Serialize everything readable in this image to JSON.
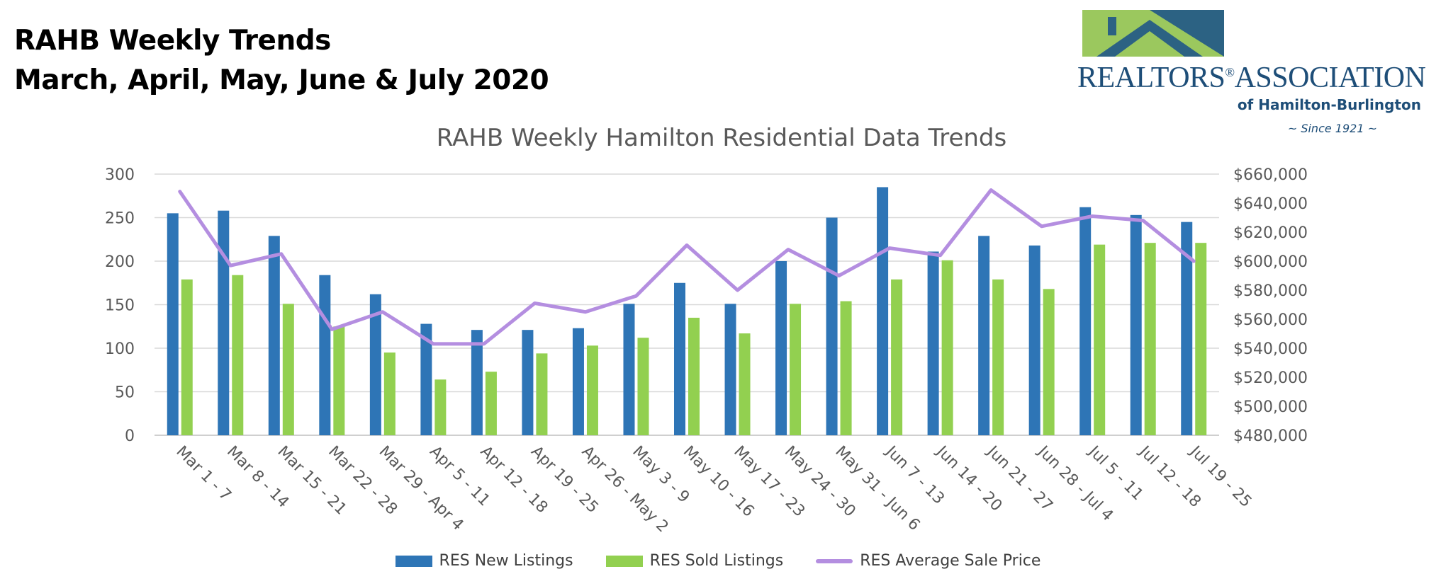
{
  "heading": {
    "line1": "RAHB Weekly Trends",
    "line2": "March, April, May, June & July 2020"
  },
  "logo": {
    "name": "REALTORS",
    "registered": "®",
    "name_tail": "ASSOCIATION",
    "subtitle": "of Hamilton-Burlington",
    "since": "~ Since 1921 ~",
    "colors": {
      "navy": "#1e4e78",
      "green": "#9bc85e",
      "teal": "#2f6e8d"
    }
  },
  "chart_data": {
    "type": "bar",
    "title": "RAHB Weekly Hamilton Residential Data Trends",
    "categories": [
      "Mar 1 - 7",
      "Mar 8 - 14",
      "Mar 15 - 21",
      "Mar 22 - 28",
      "Mar 29 - Apr 4",
      "Apr 5 - 11",
      "Apr 12 - 18",
      "Apr 19 - 25",
      "Apr 26 - May 2",
      "May 3 - 9",
      "May 10 - 16",
      "May 17 - 23",
      "May 24 - 30",
      "May 31 - Jun 6",
      "Jun 7 - 13",
      "Jun 14 - 20",
      "Jun 21 - 27",
      "Jun 28 - Jul 4",
      "Jul 5 - 11",
      "Jul 12 - 18",
      "Jul 19 - 25"
    ],
    "series": [
      {
        "name": "RES New Listings",
        "type": "bar",
        "axis": "left",
        "color": "#2e75b6",
        "values": [
          255,
          258,
          229,
          184,
          162,
          128,
          121,
          121,
          123,
          151,
          175,
          151,
          200,
          250,
          285,
          211,
          229,
          218,
          262,
          253,
          245
        ]
      },
      {
        "name": "RES Sold Listings",
        "type": "bar",
        "axis": "left",
        "color": "#92d050",
        "values": [
          179,
          184,
          151,
          125,
          95,
          64,
          73,
          94,
          103,
          112,
          135,
          117,
          151,
          154,
          179,
          201,
          179,
          168,
          219,
          221,
          221
        ]
      },
      {
        "name": "RES Average Sale Price",
        "type": "line",
        "axis": "right",
        "color": "#b48ee0",
        "values": [
          648000,
          597000,
          605000,
          553000,
          565000,
          543000,
          543000,
          571000,
          565000,
          576000,
          611000,
          580000,
          608000,
          590000,
          609000,
          604000,
          649000,
          624000,
          631000,
          628000,
          600000
        ]
      }
    ],
    "y_left": {
      "min": 0,
      "max": 300,
      "ticks": [
        "0",
        "50",
        "100",
        "150",
        "200",
        "250",
        "300"
      ]
    },
    "y_right": {
      "min": 480000,
      "max": 660000,
      "ticks": [
        "$480,000",
        "$500,000",
        "$520,000",
        "$540,000",
        "$560,000",
        "$580,000",
        "$600,000",
        "$620,000",
        "$640,000",
        "$660,000"
      ]
    },
    "grid": true,
    "legend_position": "bottom"
  }
}
